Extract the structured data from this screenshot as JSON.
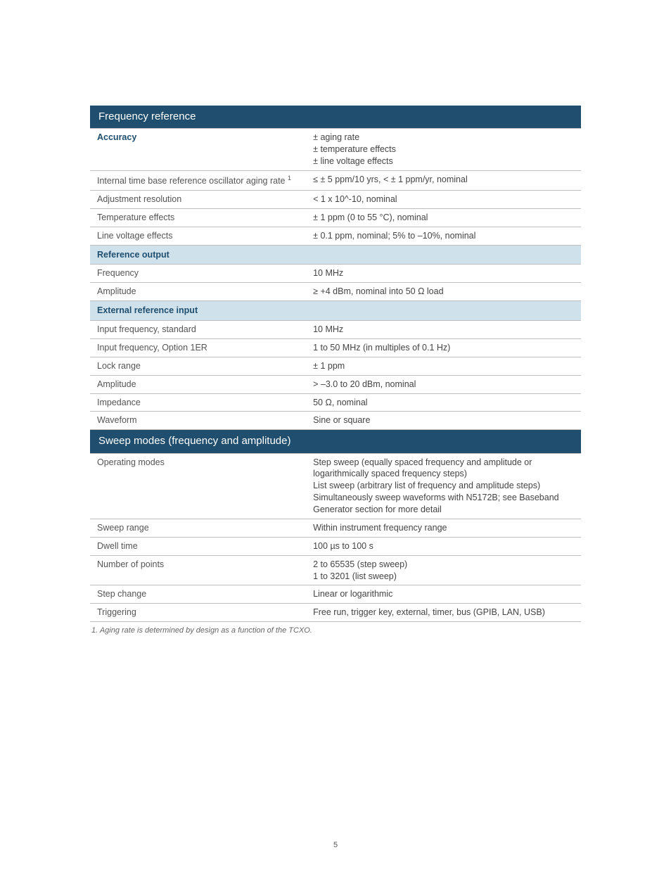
{
  "colors": {
    "header_bg": "#1f4e6e",
    "header_fg": "#ffffff",
    "subheader_bg": "#cfe2ec",
    "subheader_fg": "#1f4e6e",
    "border": "#bfbfbf",
    "text": "#444444",
    "text_muted": "#555555",
    "footnote": "#666666",
    "page_bg": "#ffffff"
  },
  "sections": [
    {
      "title": "Frequency reference",
      "rows": [
        {
          "type": "data",
          "emph": true,
          "label": "Accuracy",
          "value": "± aging rate\n± temperature effects\n± line voltage effects"
        },
        {
          "type": "data",
          "label_html": "Internal time base reference oscillator aging rate <span class='sup'>1</span>",
          "value": "≤ ± 5 ppm/10 yrs, < ± 1 ppm/yr, nominal"
        },
        {
          "type": "data",
          "label": "Adjustment resolution",
          "value": "< 1 x 10^-10, nominal"
        },
        {
          "type": "data",
          "label": "Temperature effects",
          "value": "± 1 ppm (0 to 55 °C), nominal"
        },
        {
          "type": "data",
          "label": "Line voltage effects",
          "value": "± 0.1 ppm, nominal; 5% to –10%, nominal"
        },
        {
          "type": "sub",
          "label": "Reference output"
        },
        {
          "type": "data",
          "label": "Frequency",
          "value": "10 MHz"
        },
        {
          "type": "data",
          "label": "Amplitude",
          "value": "≥ +4 dBm, nominal into 50 Ω load"
        },
        {
          "type": "sub",
          "label": "External reference input"
        },
        {
          "type": "data",
          "label": "Input frequency, standard",
          "value": "10 MHz"
        },
        {
          "type": "data",
          "label": "Input frequency, Option 1ER",
          "value": "1 to 50 MHz (in multiples of 0.1 Hz)"
        },
        {
          "type": "data",
          "label": "Lock range",
          "value": "± 1 ppm"
        },
        {
          "type": "data",
          "label": "Amplitude",
          "value": "> –3.0 to 20 dBm, nominal"
        },
        {
          "type": "data",
          "label": "Impedance",
          "value": "50 Ω, nominal"
        },
        {
          "type": "data",
          "label": "Waveform",
          "value": "Sine or square"
        }
      ]
    },
    {
      "title": "Sweep modes (frequency and amplitude)",
      "rows": [
        {
          "type": "data",
          "label": "Operating modes",
          "value": "Step sweep (equally spaced frequency and amplitude or logarithmically spaced frequency steps)\nList sweep (arbitrary list of frequency and amplitude steps)\nSimultaneously sweep waveforms with N5172B; see Baseband Generator section for more detail"
        },
        {
          "type": "data",
          "label": "Sweep range",
          "value": "Within instrument frequency range"
        },
        {
          "type": "data",
          "label": "Dwell time",
          "value": "100 µs to 100 s"
        },
        {
          "type": "data",
          "label": "Number of points",
          "value": "2 to 65535 (step sweep)\n1 to 3201 (list sweep)"
        },
        {
          "type": "data",
          "label": "Step change",
          "value": "Linear or logarithmic"
        },
        {
          "type": "data",
          "label": "Triggering",
          "value": "Free run, trigger key, external, timer, bus (GPIB, LAN, USB)"
        }
      ]
    }
  ],
  "footnote": "1.   Aging rate is determined by design as a function of the TCXO.",
  "page_number": "5"
}
